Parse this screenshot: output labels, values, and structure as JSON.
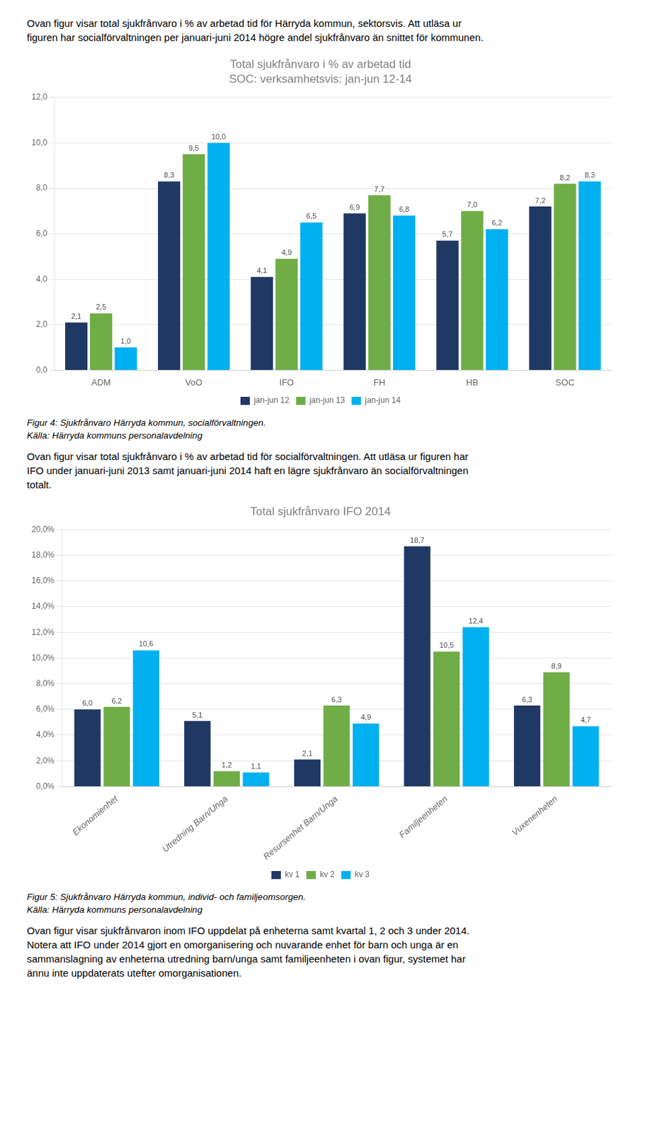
{
  "text_top": [
    "Ovan figur visar total sjukfrånvaro i % av arbetad tid för Härryda kommun, sektorsvis. Att utläsa ur",
    "figuren har socialförvaltningen per januari-juni 2014 högre andel sjukfrånvaro än snittet för kommunen."
  ],
  "chart_data": [
    {
      "type": "bar",
      "title": "Total sjukfrånvaro i % av arbetad tid",
      "subtitle": "SOC: verksamhetsvis: jan-jun 12-14",
      "categories": [
        "ADM",
        "VoO",
        "IFO",
        "FH",
        "HB",
        "SOC"
      ],
      "series": [
        {
          "name": "jan-jun 12",
          "color": "#1F3864",
          "values": [
            2.1,
            8.3,
            4.1,
            6.9,
            5.7,
            7.2
          ],
          "value_labels": [
            "2,1",
            "8,3",
            "4,1",
            "6,9",
            "5,7",
            "7,2"
          ]
        },
        {
          "name": "jan-jun 13",
          "color": "#70AD47",
          "values": [
            2.5,
            9.5,
            4.9,
            7.7,
            7.0,
            8.2
          ],
          "value_labels": [
            "2,5",
            "9,5",
            "4,9",
            "7,7",
            "7,0",
            "8,2"
          ]
        },
        {
          "name": "jan-jun 14",
          "color": "#00B0F0",
          "values": [
            1.0,
            10.0,
            6.5,
            6.8,
            6.2,
            8.3
          ],
          "value_labels": [
            "1,0",
            "10,0",
            "6,5",
            "6,8",
            "6,2",
            "8,3"
          ]
        }
      ],
      "ylim": [
        0,
        12
      ],
      "yticks": [
        {
          "value": 0,
          "label": "0,0"
        },
        {
          "value": 2,
          "label": "2,0"
        },
        {
          "value": 4,
          "label": "4,0"
        },
        {
          "value": 6,
          "label": "6,0"
        },
        {
          "value": 8,
          "label": "8,0"
        },
        {
          "value": 10,
          "label": "10,0"
        },
        {
          "value": 12,
          "label": "12,0"
        }
      ],
      "grid": true,
      "legend": "bottom",
      "data_labels": true,
      "annotations": [
        "Figur 4: Sjukfrånvaro Härryda kommun, socialförvaltningen.",
        "Källa: Härryda kommuns personalavdelning"
      ]
    },
    {
      "type": "bar",
      "title": "Total sjukfrånvaro IFO 2014",
      "categories": [
        "Ekonomienhet",
        "Utredning Barn/Unga",
        "Resursenhet Barn/Unga",
        "Familjeenheten",
        "Vuxenenheten"
      ],
      "series": [
        {
          "name": "kv 1",
          "color": "#1F3864",
          "values": [
            6.0,
            5.1,
            2.1,
            18.7,
            6.3
          ],
          "value_labels": [
            "6,0",
            "5,1",
            "2,1",
            "18,7",
            "6,3"
          ]
        },
        {
          "name": "kv 2",
          "color": "#70AD47",
          "values": [
            6.2,
            1.2,
            6.3,
            10.5,
            8.9
          ],
          "value_labels": [
            "6,2",
            "1,2",
            "6,3",
            "10,5",
            "8,9"
          ]
        },
        {
          "name": "kv 3",
          "color": "#00B0F0",
          "values": [
            10.6,
            1.1,
            4.9,
            12.4,
            4.7
          ],
          "value_labels": [
            "10,6",
            "1,1",
            "4,9",
            "12,4",
            "4,7"
          ]
        }
      ],
      "ylim": [
        0,
        20
      ],
      "yticks": [
        {
          "value": 0,
          "label": "0,0%"
        },
        {
          "value": 2,
          "label": "2,0%"
        },
        {
          "value": 4,
          "label": "4,0%"
        },
        {
          "value": 6,
          "label": "6,0%"
        },
        {
          "value": 8,
          "label": "8,0%"
        },
        {
          "value": 10,
          "label": "10,0%"
        },
        {
          "value": 12,
          "label": "12,0%"
        },
        {
          "value": 14,
          "label": "14,0%"
        },
        {
          "value": 16,
          "label": "16,0%"
        },
        {
          "value": 18,
          "label": "18,0%"
        },
        {
          "value": 20,
          "label": "20,0%"
        }
      ],
      "grid": true,
      "legend": "bottom",
      "data_labels": true,
      "annotations": [
        "Figur 5: Sjukfrånvaro Härryda kommun, individ- och familjeomsorgen.",
        "Källa: Härryda kommuns personalavdelning"
      ]
    }
  ],
  "text_middle": [
    "Ovan figur visar total sjukfrånvaro i % av arbetad tid för socialförvaltningen. Att utläsa ur figuren har",
    "IFO under januari-juni 2013 samt januari-juni 2014 haft en lägre sjukfrånvaro än socialförvaltningen",
    "totalt."
  ],
  "text_bottom": [
    "Ovan figur visar sjukfrånvaron inom IFO uppdelat på enheterna samt kvartal 1, 2 och 3 under 2014.",
    "Notera att IFO under 2014 gjort en omorganisering och nuvarande enhet för barn och unga är en",
    "sammanslagning av enheterna utredning barn/unga samt familjeenheten i ovan figur, systemet har",
    "ännu inte uppdaterats utefter omorganisationen."
  ]
}
